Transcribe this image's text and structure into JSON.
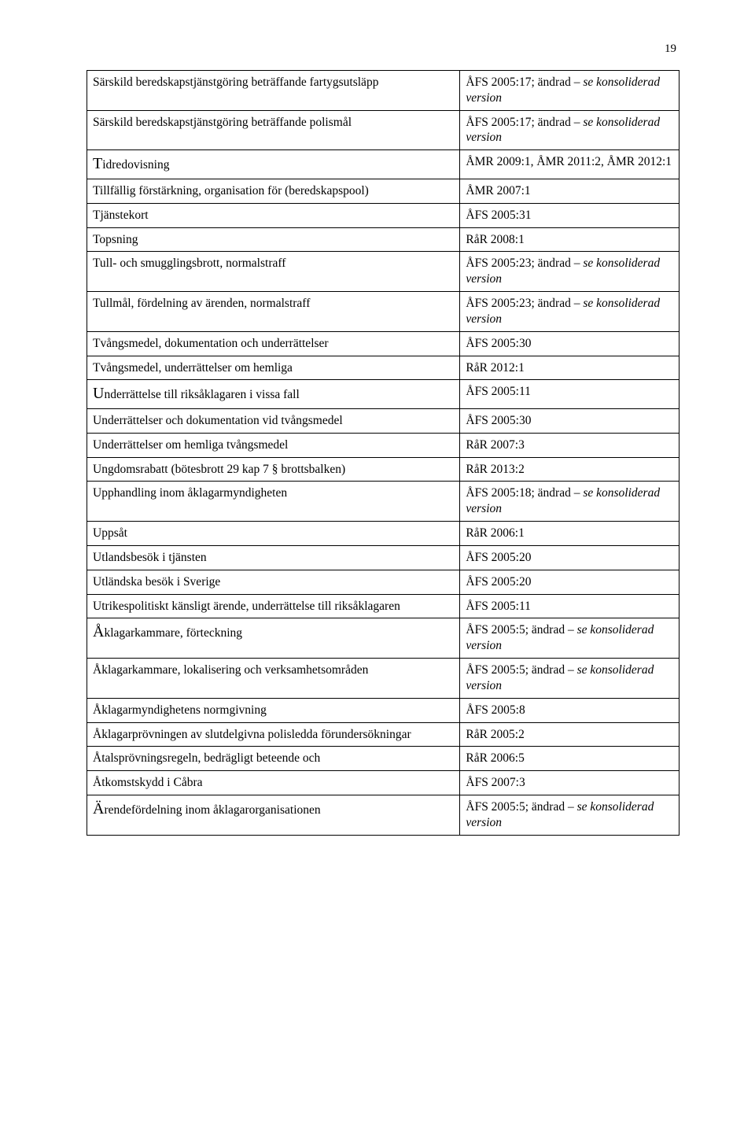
{
  "page_number": "19",
  "styling": {
    "background_color": "#ffffff",
    "text_color": "#000000",
    "border_color": "#000000",
    "font_family": "Garamond, Georgia, serif",
    "body_font_size": 15.5,
    "page_num_font_size": 15,
    "left_col_width_pct": 63,
    "right_col_width_pct": 37
  },
  "rows": [
    {
      "left": "Särskild beredskapstjänstgöring beträffande fartygsutsläpp",
      "right_plain": "ÅFS 2005:17; ändrad – ",
      "right_italic": "se konsoliderad version"
    },
    {
      "left": "Särskild beredskapstjänstgöring beträffande polismål",
      "right_plain": "ÅFS 2005:17; ändrad – ",
      "right_italic": "se konsoliderad version"
    },
    {
      "left_initial": "T",
      "left_rest": "idredovisning",
      "right_plain": "ÅMR 2009:1, ÅMR 2011:2, ÅMR 2012:1"
    },
    {
      "left": "Tillfällig förstärkning, organisation för (beredskapspool)",
      "right_plain": "ÅMR 2007:1"
    },
    {
      "left": "Tjänstekort",
      "right_plain": "ÅFS 2005:31"
    },
    {
      "left": "Topsning",
      "right_plain": "RåR 2008:1"
    },
    {
      "left": "Tull- och smugglingsbrott, normalstraff",
      "right_plain": "ÅFS 2005:23; ändrad – ",
      "right_italic": "se konsoliderad version"
    },
    {
      "left": "Tullmål, fördelning av ärenden, normalstraff",
      "right_plain": "ÅFS 2005:23; ändrad – ",
      "right_italic": "se konsoliderad version"
    },
    {
      "left": "Tvångsmedel, dokumentation och underrättelser",
      "right_plain": "ÅFS 2005:30"
    },
    {
      "left": "Tvångsmedel, underrättelser om hemliga",
      "right_plain": "RåR 2012:1"
    },
    {
      "left_initial": "U",
      "left_rest": "nderrättelse till riksåklagaren i vissa fall",
      "right_plain": "ÅFS 2005:11"
    },
    {
      "left": "Underrättelser och dokumentation vid tvångsmedel",
      "right_plain": "ÅFS 2005:30"
    },
    {
      "left": "Underrättelser om hemliga tvångsmedel",
      "right_plain": "RåR 2007:3"
    },
    {
      "left": "Ungdomsrabatt (bötesbrott 29 kap 7 § brottsbalken)",
      "right_plain": "RåR 2013:2"
    },
    {
      "left": "Upphandling inom åklagarmyndigheten",
      "right_plain": "ÅFS 2005:18; ändrad – ",
      "right_italic": "se konsoliderad version"
    },
    {
      "left": "Uppsåt",
      "right_plain": "RåR 2006:1"
    },
    {
      "left": "Utlandsbesök i tjänsten",
      "right_plain": "ÅFS 2005:20"
    },
    {
      "left": "Utländska besök i Sverige",
      "right_plain": "ÅFS 2005:20"
    },
    {
      "left": "Utrikespolitiskt känsligt ärende, underrättelse till riksåklagaren",
      "right_plain": "ÅFS 2005:11"
    },
    {
      "left_initial": "Å",
      "left_rest": "klagarkammare, förteckning",
      "right_plain": "ÅFS 2005:5; ändrad – ",
      "right_italic": "se konsoliderad version"
    },
    {
      "left": "Åklagarkammare, lokalisering och verksamhetsområden",
      "right_plain": "ÅFS 2005:5; ändrad – ",
      "right_italic": "se konsoliderad version"
    },
    {
      "left": "Åklagarmyndighetens normgivning",
      "right_plain": "ÅFS 2005:8"
    },
    {
      "left": "Åklagarprövningen av slutdelgivna polisledda förundersökningar",
      "right_plain": "RåR 2005:2"
    },
    {
      "left": "Åtalsprövningsregeln, bedrägligt beteende och",
      "right_plain": "RåR 2006:5"
    },
    {
      "left": "Åtkomstskydd i Cåbra",
      "right_plain": "ÅFS 2007:3"
    },
    {
      "left_initial": "Ä",
      "left_rest": "rendefördelning inom åklagarorganisationen",
      "right_plain": "ÅFS 2005:5; ändrad – ",
      "right_italic": "se konsoliderad version"
    }
  ]
}
